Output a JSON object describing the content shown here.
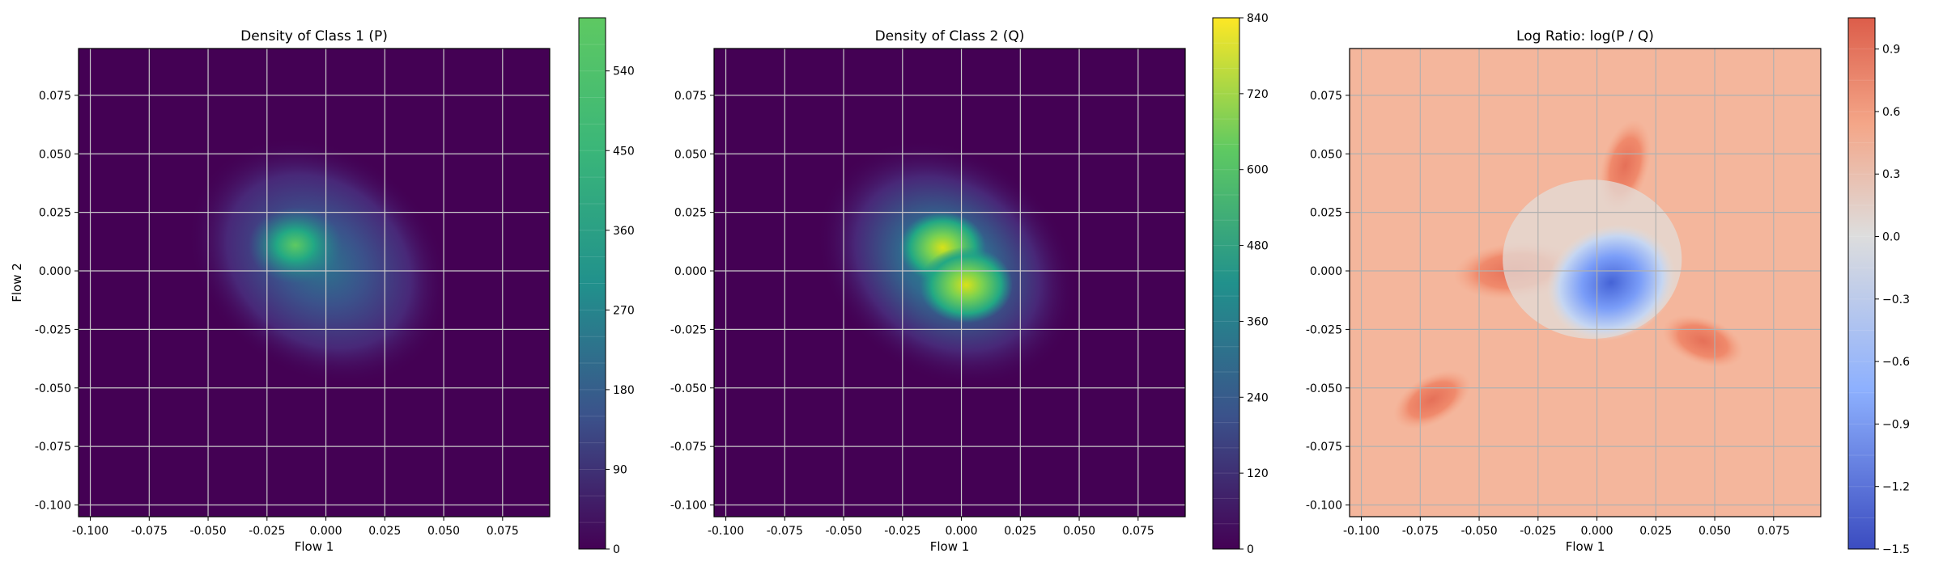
{
  "chart_data": [
    {
      "type": "heatmap",
      "title": "Density of Class 1 (P)",
      "xlabel": "Flow 1",
      "ylabel": "Flow 2",
      "xlim": [
        -0.105,
        0.095
      ],
      "ylim": [
        -0.105,
        0.095
      ],
      "xticks": [
        "-0.100",
        "-0.075",
        "-0.050",
        "-0.025",
        "0.000",
        "0.025",
        "0.050",
        "0.075"
      ],
      "yticks": [
        "-0.100",
        "-0.075",
        "-0.050",
        "-0.025",
        "0.000",
        "0.025",
        "0.050",
        "0.075"
      ],
      "grid": true,
      "colormap": "viridis",
      "colorbar": {
        "min": 0,
        "max": 600,
        "ticks": [
          0,
          90,
          180,
          270,
          360,
          450,
          540
        ],
        "tick_labels": [
          "0",
          "90",
          "180",
          "270",
          "360",
          "450",
          "540"
        ],
        "levels": 20
      },
      "peaks": [
        {
          "x": -0.013,
          "y": 0.011,
          "value": 600
        }
      ]
    },
    {
      "type": "heatmap",
      "title": "Density of Class 2 (Q)",
      "xlabel": "Flow 1",
      "ylabel": "",
      "xlim": [
        -0.105,
        0.095
      ],
      "ylim": [
        -0.105,
        0.095
      ],
      "xticks": [
        "-0.100",
        "-0.075",
        "-0.050",
        "-0.025",
        "0.000",
        "0.025",
        "0.050",
        "0.075"
      ],
      "yticks": [
        "-0.100",
        "-0.075",
        "-0.050",
        "-0.025",
        "0.000",
        "0.025",
        "0.050",
        "0.075"
      ],
      "grid": true,
      "colormap": "viridis",
      "colorbar": {
        "min": 0,
        "max": 840,
        "ticks": [
          0,
          120,
          240,
          360,
          480,
          600,
          720,
          840
        ],
        "tick_labels": [
          "0",
          "120",
          "240",
          "360",
          "480",
          "600",
          "720",
          "840"
        ],
        "levels": 21
      },
      "peaks": [
        {
          "x": -0.008,
          "y": 0.01,
          "value": 780
        },
        {
          "x": 0.002,
          "y": -0.006,
          "value": 840
        }
      ]
    },
    {
      "type": "heatmap",
      "title": "Log Ratio: log(P / Q)",
      "xlabel": "Flow 1",
      "ylabel": "",
      "xlim": [
        -0.105,
        0.095
      ],
      "ylim": [
        -0.105,
        0.095
      ],
      "xticks": [
        "-0.100",
        "-0.075",
        "-0.050",
        "-0.025",
        "0.000",
        "0.025",
        "0.050",
        "0.075"
      ],
      "yticks": [
        "-0.100",
        "-0.075",
        "-0.050",
        "-0.025",
        "0.000",
        "0.025",
        "0.050",
        "0.075"
      ],
      "grid": true,
      "colormap": "coolwarm",
      "colorbar": {
        "min": -1.5,
        "max": 1.05,
        "ticks": [
          -1.5,
          -1.2,
          -0.9,
          -0.6,
          -0.3,
          0.0,
          0.3,
          0.6,
          0.9
        ],
        "tick_labels": [
          "−1.5",
          "−1.2",
          "−0.9",
          "−0.6",
          "−0.3",
          "0.0",
          "0.3",
          "0.6",
          "0.9"
        ],
        "levels": 17
      },
      "regions": [
        {
          "description": "negative center",
          "x": 0.005,
          "y": -0.005,
          "value": -1.3
        },
        {
          "description": "positive band left",
          "x": -0.035,
          "y": 0.0,
          "value": 0.6
        },
        {
          "description": "positive band upper",
          "x": 0.01,
          "y": 0.045,
          "value": 0.6
        },
        {
          "description": "background",
          "value": 0.4
        }
      ]
    }
  ]
}
